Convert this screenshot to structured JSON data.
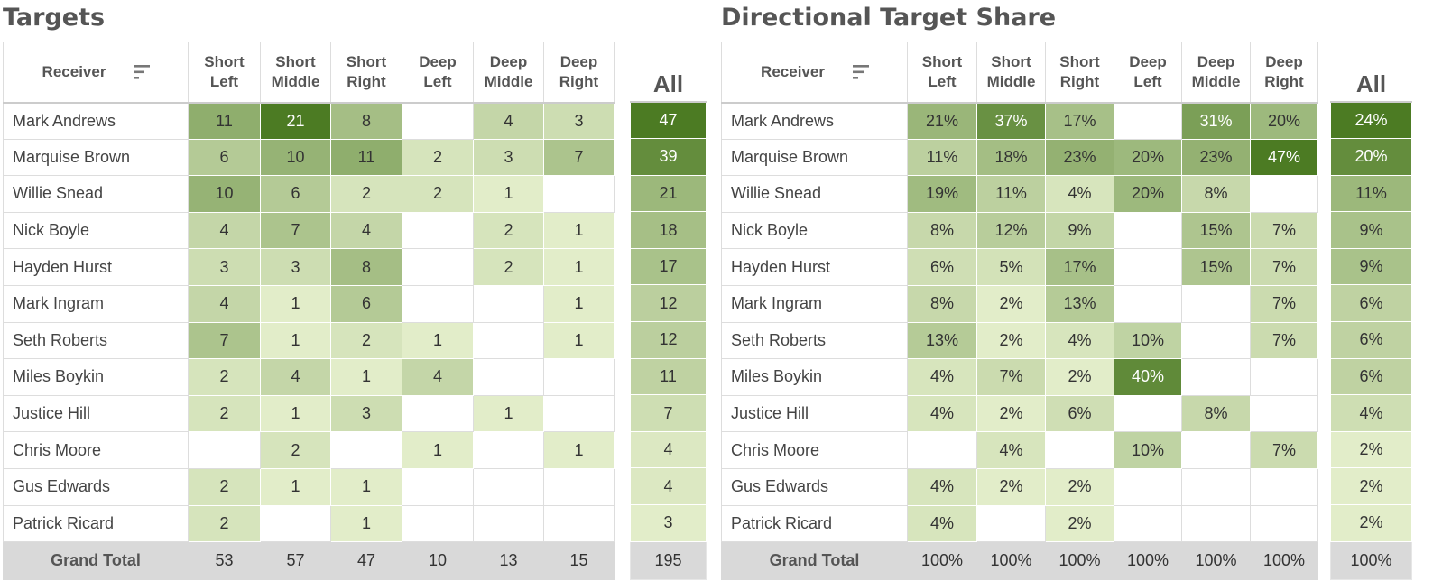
{
  "colors": {
    "scale_min": "#e2edc9",
    "scale_max": "#4c7b23",
    "total_row_bg": "#d9d9d9",
    "header_text": "#555555"
  },
  "targets": {
    "title": "Targets",
    "receiver_header": "Receiver",
    "sort_icon": "sort-icon",
    "columns": [
      [
        "Short",
        "Left"
      ],
      [
        "Short",
        "Middle"
      ],
      [
        "Short",
        "Right"
      ],
      [
        "Deep",
        "Left"
      ],
      [
        "Deep",
        "Middle"
      ],
      [
        "Deep",
        "Right"
      ]
    ],
    "all_header": "All",
    "rows": [
      {
        "receiver": "Mark Andrews",
        "values": [
          "11",
          "21",
          "8",
          "",
          "4",
          "3"
        ],
        "all": "47"
      },
      {
        "receiver": "Marquise Brown",
        "values": [
          "6",
          "10",
          "11",
          "2",
          "3",
          "7"
        ],
        "all": "39"
      },
      {
        "receiver": "Willie Snead",
        "values": [
          "10",
          "6",
          "2",
          "2",
          "1",
          ""
        ],
        "all": "21"
      },
      {
        "receiver": "Nick Boyle",
        "values": [
          "4",
          "7",
          "4",
          "",
          "2",
          "1"
        ],
        "all": "18"
      },
      {
        "receiver": "Hayden Hurst",
        "values": [
          "3",
          "3",
          "8",
          "",
          "2",
          "1"
        ],
        "all": "17"
      },
      {
        "receiver": "Mark Ingram",
        "values": [
          "4",
          "1",
          "6",
          "",
          "",
          "1"
        ],
        "all": "12"
      },
      {
        "receiver": "Seth Roberts",
        "values": [
          "7",
          "1",
          "2",
          "1",
          "",
          "1"
        ],
        "all": "12"
      },
      {
        "receiver": "Miles Boykin",
        "values": [
          "2",
          "4",
          "1",
          "4",
          "",
          ""
        ],
        "all": "11"
      },
      {
        "receiver": "Justice Hill",
        "values": [
          "2",
          "1",
          "3",
          "",
          "1",
          ""
        ],
        "all": "7"
      },
      {
        "receiver": "Chris Moore",
        "values": [
          "",
          "2",
          "",
          "1",
          "",
          "1"
        ],
        "all": "4"
      },
      {
        "receiver": "Gus Edwards",
        "values": [
          "2",
          "1",
          "1",
          "",
          "",
          ""
        ],
        "all": "4"
      },
      {
        "receiver": "Patrick Ricard",
        "values": [
          "2",
          "",
          "1",
          "",
          "",
          ""
        ],
        "all": "3"
      }
    ],
    "total": {
      "label": "Grand Total",
      "values": [
        "53",
        "57",
        "47",
        "10",
        "13",
        "15"
      ],
      "all": "195"
    }
  },
  "share": {
    "title": "Directional Target Share",
    "receiver_header": "Receiver",
    "sort_icon": "sort-icon",
    "columns": [
      [
        "Short",
        "Left"
      ],
      [
        "Short",
        "Middle"
      ],
      [
        "Short",
        "Right"
      ],
      [
        "Deep",
        "Left"
      ],
      [
        "Deep",
        "Middle"
      ],
      [
        "Deep",
        "Right"
      ]
    ],
    "all_header": "All",
    "rows": [
      {
        "receiver": "Mark Andrews",
        "values": [
          "21%",
          "37%",
          "17%",
          "",
          "31%",
          "20%"
        ],
        "all": "24%"
      },
      {
        "receiver": "Marquise Brown",
        "values": [
          "11%",
          "18%",
          "23%",
          "20%",
          "23%",
          "47%"
        ],
        "all": "20%"
      },
      {
        "receiver": "Willie Snead",
        "values": [
          "19%",
          "11%",
          "4%",
          "20%",
          "8%",
          ""
        ],
        "all": "11%"
      },
      {
        "receiver": "Nick Boyle",
        "values": [
          "8%",
          "12%",
          "9%",
          "",
          "15%",
          "7%"
        ],
        "all": "9%"
      },
      {
        "receiver": "Hayden Hurst",
        "values": [
          "6%",
          "5%",
          "17%",
          "",
          "15%",
          "7%"
        ],
        "all": "9%"
      },
      {
        "receiver": "Mark Ingram",
        "values": [
          "8%",
          "2%",
          "13%",
          "",
          "",
          "7%"
        ],
        "all": "6%"
      },
      {
        "receiver": "Seth Roberts",
        "values": [
          "13%",
          "2%",
          "4%",
          "10%",
          "",
          "7%"
        ],
        "all": "6%"
      },
      {
        "receiver": "Miles Boykin",
        "values": [
          "4%",
          "7%",
          "2%",
          "40%",
          "",
          ""
        ],
        "all": "6%"
      },
      {
        "receiver": "Justice Hill",
        "values": [
          "4%",
          "2%",
          "6%",
          "",
          "8%",
          ""
        ],
        "all": "4%"
      },
      {
        "receiver": "Chris Moore",
        "values": [
          "",
          "4%",
          "",
          "10%",
          "",
          "7%"
        ],
        "all": "2%"
      },
      {
        "receiver": "Gus Edwards",
        "values": [
          "4%",
          "2%",
          "2%",
          "",
          "",
          ""
        ],
        "all": "2%"
      },
      {
        "receiver": "Patrick Ricard",
        "values": [
          "4%",
          "",
          "2%",
          "",
          "",
          ""
        ],
        "all": "2%"
      }
    ],
    "total": {
      "label": "Grand Total",
      "values": [
        "100%",
        "100%",
        "100%",
        "100%",
        "100%",
        "100%"
      ],
      "all": "100%"
    }
  }
}
